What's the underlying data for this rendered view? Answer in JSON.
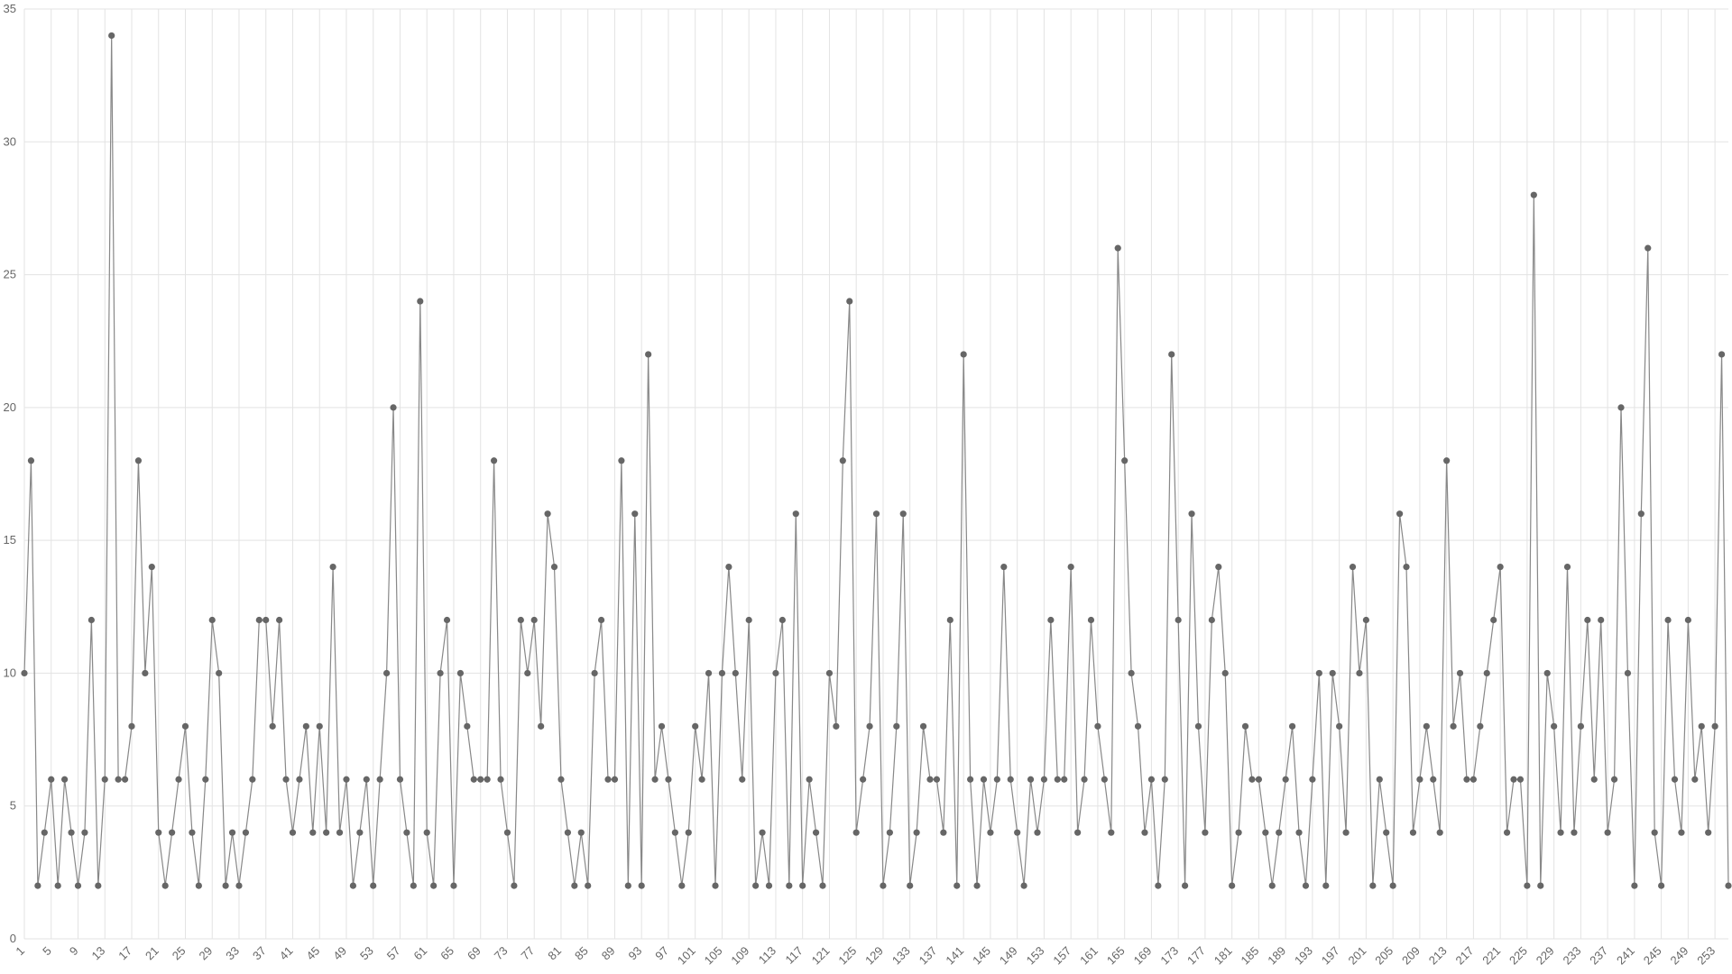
{
  "chart_data": {
    "type": "line",
    "title": "",
    "xlabel": "",
    "ylabel": "",
    "x_start": 1,
    "x_tick_step": 4,
    "ylim": [
      0,
      35
    ],
    "y_ticks": [
      0,
      5,
      10,
      15,
      20,
      25,
      30,
      35
    ],
    "grid": true,
    "colors": {
      "line": "#888888",
      "point": "#666666",
      "grid": "#e3e3e3",
      "axis_text": "#666666"
    },
    "series": [
      {
        "values": [
          10,
          18,
          2,
          4,
          6,
          2,
          6,
          4,
          2,
          4,
          12,
          2,
          6,
          34,
          6,
          6,
          8,
          18,
          10,
          14,
          4,
          2,
          4,
          6,
          8,
          4,
          2,
          6,
          12,
          10,
          2,
          4,
          2,
          4,
          6,
          12,
          12,
          8,
          12,
          6,
          4,
          6,
          8,
          4,
          8,
          4,
          14,
          4,
          6,
          2,
          4,
          6,
          2,
          6,
          10,
          20,
          6,
          4,
          2,
          24,
          4,
          2,
          10,
          12,
          2,
          10,
          8,
          6,
          6,
          6,
          18,
          6,
          4,
          2,
          12,
          10,
          12,
          8,
          16,
          14,
          6,
          4,
          2,
          4,
          2,
          10,
          12,
          6,
          6,
          18,
          2,
          16,
          2,
          22,
          6,
          8,
          6,
          4,
          2,
          4,
          8,
          6,
          10,
          2,
          10,
          14,
          10,
          6,
          12,
          2,
          4,
          2,
          10,
          12,
          2,
          16,
          2,
          6,
          4,
          2,
          10,
          8,
          18,
          24,
          4,
          6,
          8,
          16,
          2,
          4,
          8,
          16,
          2,
          4,
          8,
          6,
          6,
          4,
          12,
          2,
          22,
          6,
          2,
          6,
          4,
          6,
          14,
          6,
          4,
          2,
          6,
          4,
          6,
          12,
          6,
          6,
          14,
          4,
          6,
          12,
          8,
          6,
          4,
          26,
          18,
          10,
          8,
          4,
          6,
          2,
          6,
          22,
          12,
          2,
          16,
          8,
          4,
          12,
          14,
          10,
          2,
          4,
          8,
          6,
          6,
          4,
          2,
          4,
          6,
          8,
          4,
          2,
          6,
          10,
          2,
          10,
          8,
          4,
          14,
          10,
          12,
          2,
          6,
          4,
          2,
          16,
          14,
          4,
          6,
          8,
          6,
          4,
          18,
          8,
          10,
          6,
          6,
          8,
          10,
          12,
          14,
          4,
          6,
          6,
          2,
          28,
          2,
          10,
          8,
          4,
          14,
          4,
          8,
          12,
          6,
          12,
          4,
          6,
          20,
          10,
          2,
          16,
          26,
          4,
          2,
          12,
          6,
          4,
          12,
          6,
          8,
          4,
          8,
          22,
          2
        ]
      }
    ]
  }
}
